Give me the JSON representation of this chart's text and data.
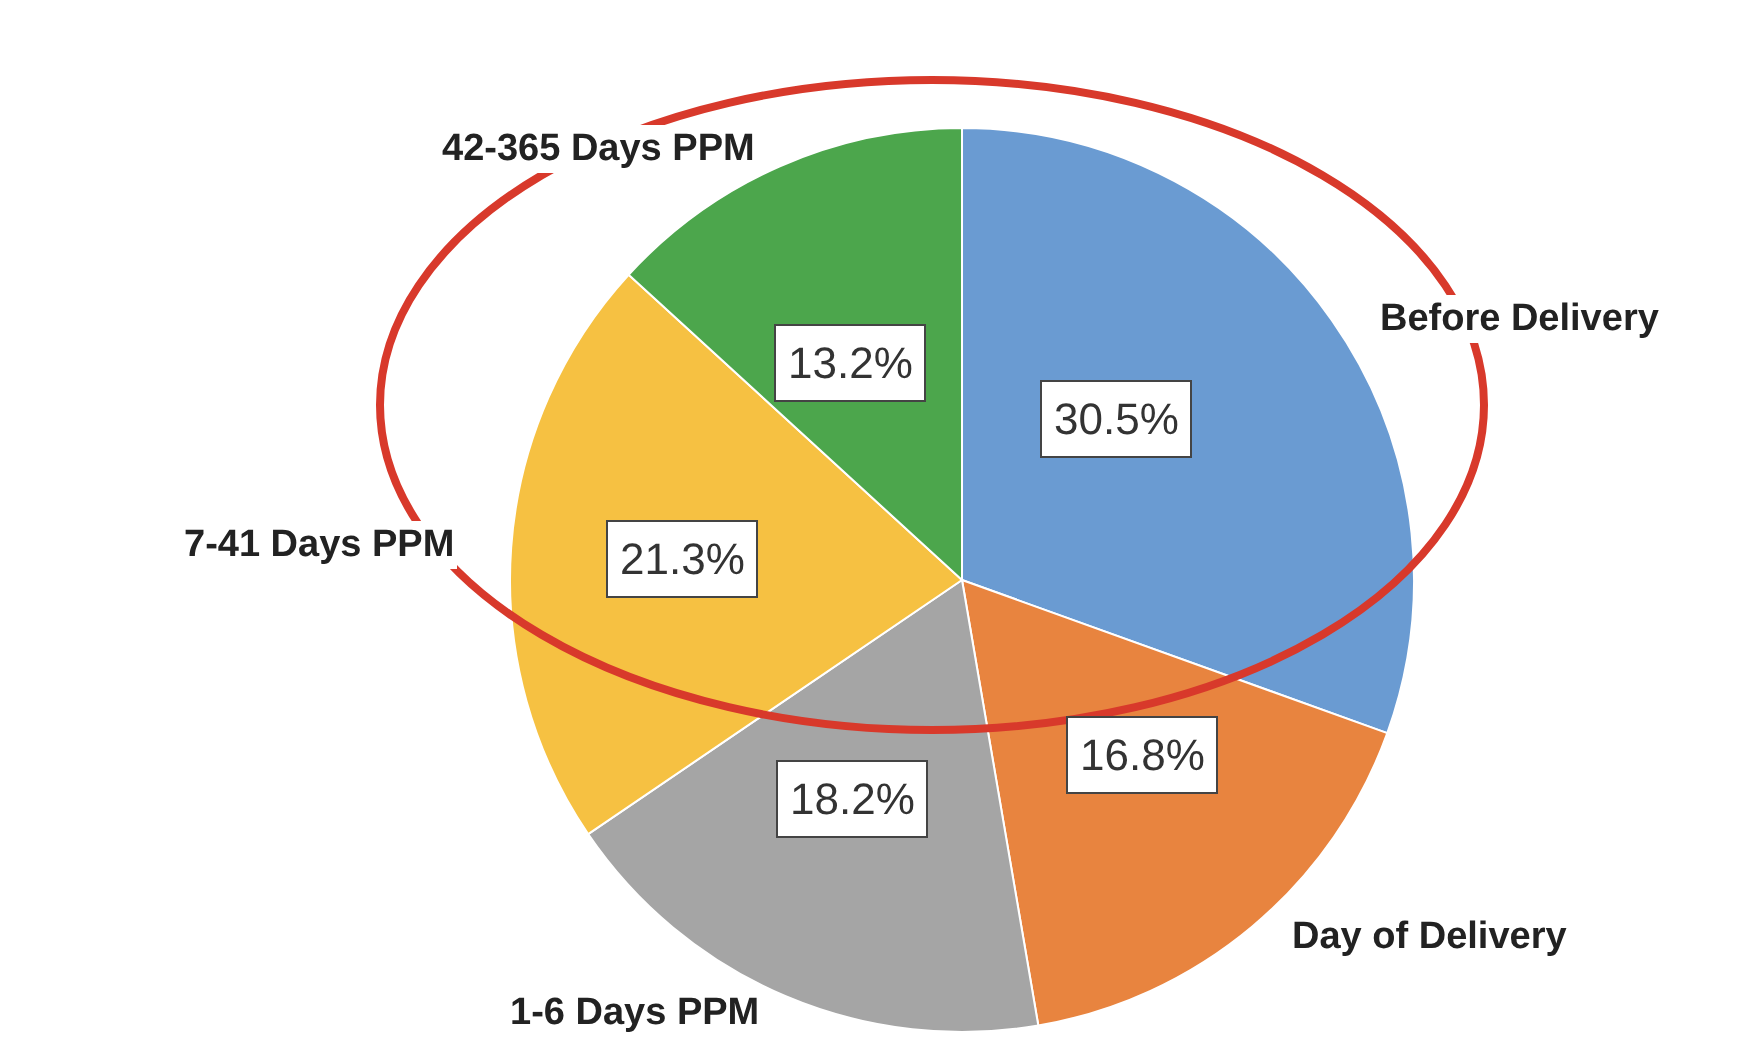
{
  "chart_data": {
    "type": "pie",
    "categories": [
      "Before Delivery",
      "Day of Delivery",
      "1-6 Days PPM",
      "7-41 Days PPM",
      "42-365 Days PPM"
    ],
    "values": [
      30.5,
      16.8,
      18.2,
      21.3,
      13.2
    ],
    "value_labels": [
      "30.5%",
      "16.8%",
      "18.2%",
      "21.3%",
      "13.2%"
    ],
    "colors": [
      "#6a9bd2",
      "#e8843f",
      "#a5a5a5",
      "#f6c142",
      "#4ca64c"
    ],
    "legend": false
  }
}
